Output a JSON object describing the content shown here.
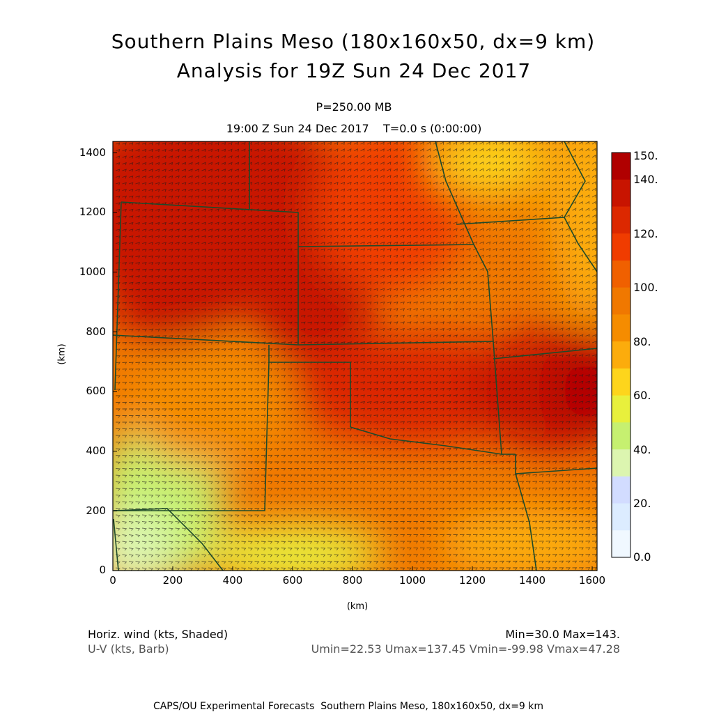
{
  "header": {
    "title_line1": "Southern Plains Meso (180x160x50, dx=9 km)",
    "title_line2": "Analysis for 19Z Sun 24 Dec 2017",
    "level": "P=250.00 MB",
    "time_line": "19:00 Z Sun 24 Dec 2017    T=0.0 s (0:00:00)"
  },
  "axes": {
    "x_label": "(km)",
    "y_label": "(km)",
    "x_ticks": [
      "0",
      "200",
      "400",
      "600",
      "800",
      "1000",
      "1200",
      "1400",
      "1600"
    ],
    "y_ticks": [
      "1400",
      "1200",
      "1000",
      "800",
      "600",
      "400",
      "200",
      "0"
    ]
  },
  "colorbar": {
    "labels": [
      "150.",
      "140.",
      "120.",
      "100.",
      "80.",
      "60.",
      "40.",
      "20.",
      "0.0"
    ],
    "colors": [
      "#b00000",
      "#c81400",
      "#dc2800",
      "#f03c00",
      "#f06000",
      "#f07800",
      "#f58c00",
      "#fcac0c",
      "#fdd51c",
      "#e8f03c",
      "#c6f070",
      "#dcf5b0",
      "#d2dcff",
      "#dcecff",
      "#f0f8ff"
    ]
  },
  "field": {
    "name": "Horiz. wind (kts, Shaded)",
    "vector_name": "U-V (kts, Barb)",
    "stats_line1": "Min=30.0 Max=143.",
    "stats_line2": "Umin=22.53 Umax=137.45 Vmin=-99.98 Vmax=47.28"
  },
  "footer": {
    "credit": "CAPS/OU Experimental Forecasts  Southern Plains Meso, 180x160x50, dx=9 km"
  },
  "map_colors": {
    "border": "#1e4a2a",
    "barb": "#1a1a1a"
  }
}
